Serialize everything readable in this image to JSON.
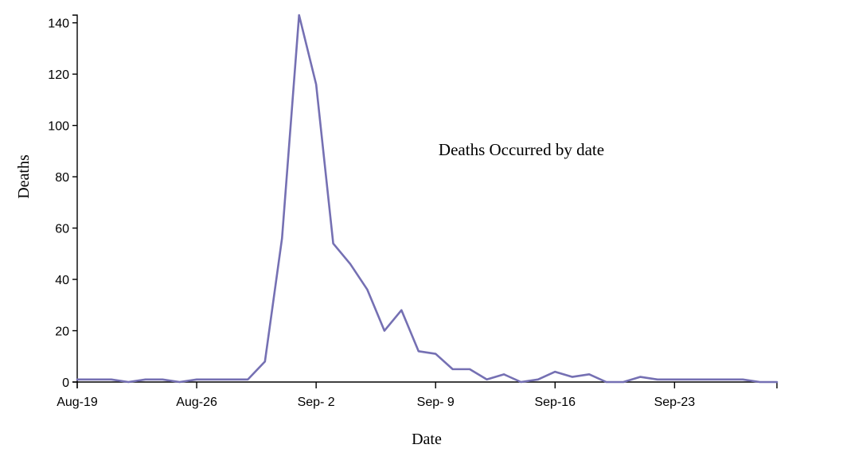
{
  "chart_data": {
    "type": "line",
    "title": "",
    "annotation": "Deaths Occurred by date",
    "xlabel": "Date",
    "ylabel": "Deaths",
    "xlim": [
      "1854-08-19",
      "1854-09-29"
    ],
    "ylim": [
      0,
      143
    ],
    "y_ticks": [
      0,
      20,
      40,
      60,
      80,
      100,
      120,
      140
    ],
    "x_ticks": [
      {
        "date": "1854-08-19",
        "label": "Aug-19"
      },
      {
        "date": "1854-08-26",
        "label": "Aug-26"
      },
      {
        "date": "1854-09-02",
        "label": "Sep- 2"
      },
      {
        "date": "1854-09-09",
        "label": "Sep- 9"
      },
      {
        "date": "1854-09-16",
        "label": "Sep-16"
      },
      {
        "date": "1854-09-23",
        "label": "Sep-23"
      }
    ],
    "grid": false,
    "legend": "none",
    "line_color": "#7570b3",
    "series": [
      {
        "x": [
          "1854-08-19",
          "1854-08-20",
          "1854-08-21",
          "1854-08-22",
          "1854-08-23",
          "1854-08-24",
          "1854-08-25",
          "1854-08-26",
          "1854-08-27",
          "1854-08-28",
          "1854-08-29",
          "1854-08-30",
          "1854-08-31",
          "1854-09-01",
          "1854-09-02",
          "1854-09-03",
          "1854-09-04",
          "1854-09-05",
          "1854-09-06",
          "1854-09-07",
          "1854-09-08",
          "1854-09-09",
          "1854-09-10",
          "1854-09-11",
          "1854-09-12",
          "1854-09-13",
          "1854-09-14",
          "1854-09-15",
          "1854-09-16",
          "1854-09-17",
          "1854-09-18",
          "1854-09-19",
          "1854-09-20",
          "1854-09-21",
          "1854-09-22",
          "1854-09-23",
          "1854-09-24",
          "1854-09-25",
          "1854-09-26",
          "1854-09-27",
          "1854-09-28",
          "1854-09-29"
        ],
        "values": [
          1,
          1,
          1,
          0,
          1,
          1,
          0,
          1,
          1,
          1,
          1,
          8,
          56,
          143,
          116,
          54,
          46,
          36,
          20,
          28,
          12,
          11,
          5,
          5,
          1,
          3,
          0,
          1,
          4,
          2,
          3,
          0,
          0,
          2,
          1,
          1,
          1,
          1,
          1,
          1,
          0,
          0
        ]
      }
    ]
  }
}
